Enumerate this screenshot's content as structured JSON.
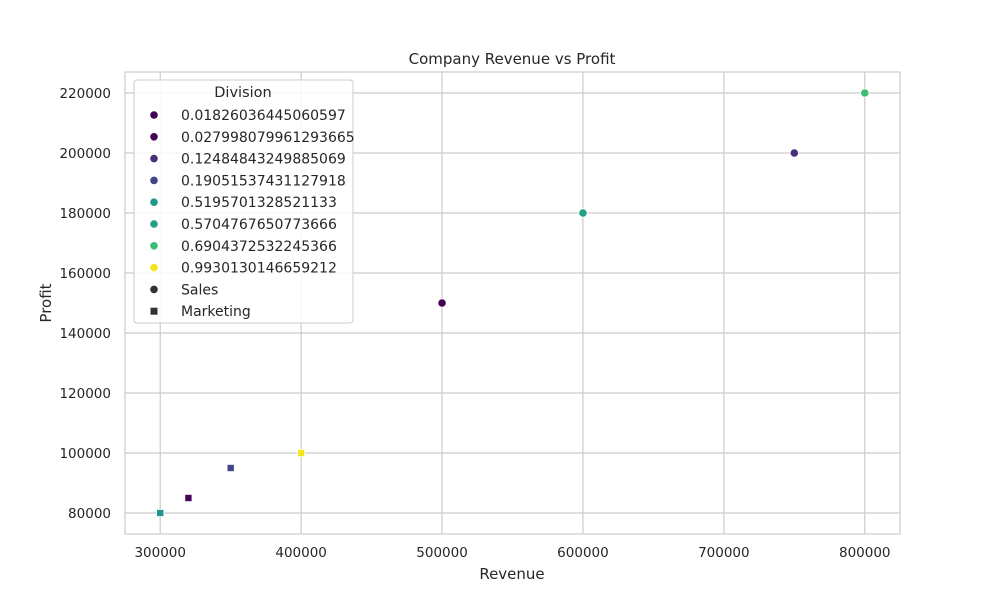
{
  "chart_data": {
    "type": "scatter",
    "title": "Company Revenue vs Profit",
    "xlabel": "Revenue",
    "ylabel": "Profit",
    "xlim": [
      275000,
      825000
    ],
    "ylim": [
      73000,
      227000
    ],
    "xticks": [
      300000,
      400000,
      500000,
      600000,
      700000,
      800000
    ],
    "yticks": [
      80000,
      100000,
      120000,
      140000,
      160000,
      180000,
      200000,
      220000
    ],
    "grid": true,
    "legend": {
      "title": "Division",
      "placement": "top-left",
      "hue_entries": [
        {
          "label": "0.01826036445060597",
          "color": "#440154"
        },
        {
          "label": "0.027998079961293665",
          "color": "#450457"
        },
        {
          "label": "0.12484843249885069",
          "color": "#472f7d"
        },
        {
          "label": "0.19051537431127918",
          "color": "#404688"
        },
        {
          "label": "0.5195701328521133",
          "color": "#1f958b"
        },
        {
          "label": "0.5704767650773666",
          "color": "#1fa187"
        },
        {
          "label": "0.6904372532245366",
          "color": "#3dbc74"
        },
        {
          "label": "0.9930130146659212",
          "color": "#f4e61e"
        }
      ],
      "style_entries": [
        {
          "label": "Sales",
          "marker": "circle",
          "color": "#333333"
        },
        {
          "label": "Marketing",
          "marker": "square",
          "color": "#333333"
        }
      ]
    },
    "series": [
      {
        "x": 500000,
        "y": 150000,
        "hue": "0.01826036445060597",
        "style": "Sales",
        "color": "#440154"
      },
      {
        "x": 750000,
        "y": 200000,
        "hue": "0.12484843249885069",
        "style": "Sales",
        "color": "#472f7d"
      },
      {
        "x": 600000,
        "y": 180000,
        "hue": "0.5704767650773666",
        "style": "Sales",
        "color": "#1fa187"
      },
      {
        "x": 800000,
        "y": 220000,
        "hue": "0.6904372532245366",
        "style": "Sales",
        "color": "#3dbc74"
      },
      {
        "x": 320000,
        "y": 85000,
        "hue": "0.027998079961293665",
        "style": "Marketing",
        "color": "#450457"
      },
      {
        "x": 350000,
        "y": 95000,
        "hue": "0.19051537431127918",
        "style": "Marketing",
        "color": "#404688"
      },
      {
        "x": 400000,
        "y": 100000,
        "hue": "0.9930130146659212",
        "style": "Marketing",
        "color": "#f4e61e"
      },
      {
        "x": 300000,
        "y": 80000,
        "hue": "0.5195701328521133",
        "style": "Marketing",
        "color": "#1f958b"
      }
    ]
  }
}
